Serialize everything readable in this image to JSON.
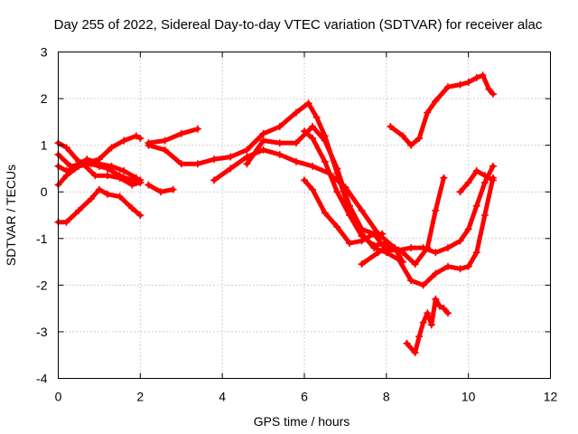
{
  "chart_data": {
    "type": "scatter",
    "title": "Day 255 of 2022, Sidereal Day-to-day VTEC variation (SDTVAR) for receiver alac",
    "xlabel": "GPS time / hours",
    "ylabel": "SDTVAR / TECUs",
    "xlim": [
      0,
      12
    ],
    "ylim": [
      -4,
      3
    ],
    "xticks": [
      0,
      2,
      4,
      6,
      8,
      10,
      12
    ],
    "yticks": [
      -4,
      -3,
      -2,
      -1,
      0,
      1,
      2,
      3
    ],
    "grid": true,
    "marker": "plus",
    "color": "#ff0000",
    "series": [
      {
        "x": [
          0,
          0.2,
          0.5,
          0.8,
          1.0,
          1.2,
          1.5,
          1.8,
          2.0
        ],
        "y": [
          -0.65,
          -0.65,
          -0.4,
          -0.15,
          0.05,
          -0.05,
          -0.1,
          -0.35,
          -0.5
        ]
      },
      {
        "x": [
          0,
          0.2,
          0.5,
          0.8,
          1.0,
          1.2,
          1.5,
          1.8,
          2.0
        ],
        "y": [
          0.15,
          0.35,
          0.55,
          0.6,
          0.55,
          0.5,
          0.35,
          0.25,
          0.25
        ]
      },
      {
        "x": [
          0,
          0.2,
          0.4,
          0.7,
          1.0,
          1.3,
          1.6,
          1.9,
          2.0
        ],
        "y": [
          0.55,
          0.45,
          0.5,
          0.7,
          0.6,
          0.55,
          0.45,
          0.3,
          0.2
        ]
      },
      {
        "x": [
          0,
          0.2,
          0.5,
          0.8,
          1.0,
          1.3,
          1.6,
          1.9,
          2.0
        ],
        "y": [
          1.05,
          0.95,
          0.65,
          0.65,
          0.7,
          0.95,
          1.1,
          1.2,
          1.15
        ]
      },
      {
        "x": [
          0,
          0.3,
          0.6,
          0.9,
          1.2,
          1.5,
          1.8,
          2.0
        ],
        "y": [
          0.8,
          0.55,
          0.6,
          0.35,
          0.35,
          0.3,
          0.15,
          0.2
        ]
      },
      {
        "x": [
          2.2,
          2.6,
          3.0,
          3.4
        ],
        "y": [
          1.05,
          1.1,
          1.25,
          1.35
        ]
      },
      {
        "x": [
          2.2,
          2.5,
          2.8
        ],
        "y": [
          0.15,
          0.0,
          0.05
        ]
      },
      {
        "x": [
          2.2,
          2.6,
          3.0,
          3.4,
          3.8,
          4.2,
          4.6,
          5.0,
          5.4,
          5.8,
          6.1,
          6.3,
          6.5,
          6.8,
          7.1,
          7.4,
          7.7,
          8.0,
          8.3,
          8.6,
          8.9,
          9.2,
          9.5,
          9.8,
          10.0,
          10.2,
          10.4,
          10.6
        ],
        "y": [
          1.0,
          0.9,
          0.6,
          0.6,
          0.7,
          0.75,
          0.9,
          1.25,
          1.4,
          1.7,
          1.9,
          1.6,
          1.2,
          0.4,
          -0.4,
          -0.9,
          -1.2,
          -1.3,
          -1.45,
          -1.9,
          -2.0,
          -1.75,
          -1.6,
          -1.65,
          -1.6,
          -1.3,
          -0.5,
          0.3
        ]
      },
      {
        "x": [
          3.8,
          4.2,
          4.6,
          5.0,
          5.4,
          5.8,
          6.2,
          6.6,
          7.0,
          7.4,
          7.8,
          8.2,
          8.4
        ],
        "y": [
          0.25,
          0.5,
          0.75,
          0.9,
          0.8,
          0.65,
          0.55,
          0.4,
          0.1,
          -0.4,
          -0.9,
          -1.2,
          -1.5
        ]
      },
      {
        "x": [
          4.6,
          5.0,
          5.4,
          5.8,
          6.2,
          6.5,
          6.8,
          7.1,
          7.4,
          7.7,
          8.0,
          8.3,
          8.6,
          8.9,
          9.2,
          9.5,
          9.8,
          10.0,
          10.2,
          10.4,
          10.6
        ],
        "y": [
          0.6,
          1.1,
          1.05,
          1.05,
          1.4,
          1.1,
          0.5,
          -0.3,
          -0.8,
          -0.9,
          -1.25,
          -1.25,
          -1.2,
          -1.2,
          -1.3,
          -1.2,
          -1.05,
          -0.8,
          -0.3,
          0.2,
          0.55
        ]
      },
      {
        "x": [
          6.0,
          6.2,
          6.5,
          6.8,
          7.1,
          7.4,
          7.7,
          8.0,
          8.2
        ],
        "y": [
          1.3,
          1.15,
          0.65,
          0.0,
          -0.5,
          -0.95,
          -1.15,
          -1.1,
          -1.2
        ]
      },
      {
        "x": [
          6.0,
          6.2,
          6.5,
          6.8,
          7.1,
          7.4,
          7.7,
          7.9
        ],
        "y": [
          0.25,
          0.05,
          -0.45,
          -0.75,
          -1.1,
          -1.05,
          -0.9,
          -0.9
        ]
      },
      {
        "x": [
          7.4,
          7.8,
          8.1,
          8.4,
          8.7,
          9.0,
          9.2,
          9.4
        ],
        "y": [
          -1.55,
          -1.3,
          -1.15,
          -1.3,
          -1.55,
          -1.2,
          -0.4,
          0.3
        ]
      },
      {
        "x": [
          8.1,
          8.4,
          8.6,
          8.8,
          9.0,
          9.2,
          9.5,
          9.8,
          10.0,
          10.2,
          10.35,
          10.5,
          10.6
        ],
        "y": [
          1.4,
          1.2,
          1.0,
          1.15,
          1.7,
          1.95,
          2.25,
          2.3,
          2.35,
          2.45,
          2.5,
          2.2,
          2.1
        ]
      },
      {
        "x": [
          8.5,
          8.7,
          8.8,
          8.9,
          9.0,
          9.1,
          9.2,
          9.3,
          9.4,
          9.5
        ],
        "y": [
          -3.25,
          -3.45,
          -3.1,
          -2.8,
          -2.6,
          -2.85,
          -2.3,
          -2.45,
          -2.5,
          -2.6
        ]
      },
      {
        "x": [
          9.8,
          10.0,
          10.2,
          10.4,
          10.6
        ],
        "y": [
          0.0,
          0.2,
          0.45,
          0.35,
          0.25
        ]
      }
    ]
  }
}
